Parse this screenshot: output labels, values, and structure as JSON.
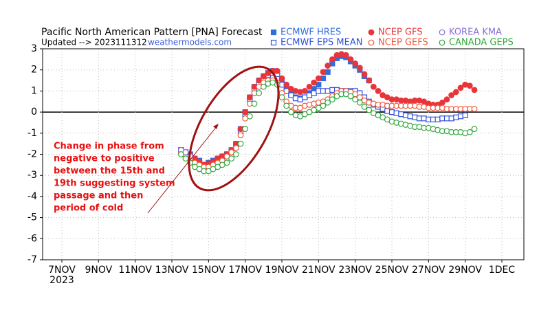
{
  "chart_data": {
    "type": "scatter",
    "title": "Pacific North American Pattern [PNA] Forecast",
    "subtitle": "Updated --> 2023111312",
    "source": "weathermodels.com",
    "x_year_label": "2023",
    "annotation": [
      "Change in phase from",
      "negative to positive",
      "between the 15th and",
      "19th suggesting system",
      "passage and then",
      "period of cold"
    ],
    "xlim": [
      5.95,
      32.2
    ],
    "ylim": [
      -7,
      3
    ],
    "xticks": [
      {
        "value": 7,
        "label": "7NOV"
      },
      {
        "value": 9,
        "label": "9NOV"
      },
      {
        "value": 11,
        "label": "11NOV"
      },
      {
        "value": 13,
        "label": "13NOV"
      },
      {
        "value": 15,
        "label": "15NOV"
      },
      {
        "value": 17,
        "label": "17NOV"
      },
      {
        "value": 19,
        "label": "19NOV"
      },
      {
        "value": 21,
        "label": "21NOV"
      },
      {
        "value": 23,
        "label": "23NOV"
      },
      {
        "value": 25,
        "label": "25NOV"
      },
      {
        "value": 27,
        "label": "27NOV"
      },
      {
        "value": 29,
        "label": "29NOV"
      },
      {
        "value": 31,
        "label": "1DEC"
      }
    ],
    "yticks": [
      -7,
      -6,
      -5,
      -4,
      -3,
      -2,
      -1,
      0,
      1,
      2,
      3
    ],
    "grid": true,
    "x": [
      13.5,
      13.75,
      14,
      14.25,
      14.5,
      14.75,
      15,
      15.25,
      15.5,
      15.75,
      16,
      16.25,
      16.5,
      16.75,
      17,
      17.25,
      17.5,
      17.75,
      18,
      18.25,
      18.5,
      18.75,
      19,
      19.25,
      19.5,
      19.75,
      20,
      20.25,
      20.5,
      20.75,
      21,
      21.25,
      21.5,
      21.75,
      22,
      22.25,
      22.5,
      22.75,
      23,
      23.25,
      23.5,
      23.75,
      24,
      24.25,
      24.5,
      24.75,
      25,
      25.25,
      25.5,
      25.75,
      26,
      26.25,
      26.5,
      26.75,
      27,
      27.25,
      27.5,
      27.75,
      28,
      28.25,
      28.5,
      28.75,
      29,
      29.25,
      29.5
    ],
    "series": [
      {
        "name": "ECMWF HRES",
        "color": "#2f6fdc",
        "marker": "square",
        "filled": true,
        "values": [
          -1.8,
          -1.9,
          -2.0,
          -2.2,
          -2.3,
          -2.5,
          -2.4,
          -2.3,
          -2.2,
          -2.1,
          -2.0,
          -1.8,
          -1.5,
          -0.8,
          0,
          0.7,
          1.2,
          1.5,
          1.7,
          1.85,
          1.95,
          1.9,
          1.5,
          1.1,
          0.85,
          0.7,
          0.65,
          0.7,
          0.9,
          1.1,
          1.3,
          1.6,
          1.9,
          2.3,
          2.55,
          2.65,
          2.6,
          2.4,
          2.2,
          2.0,
          1.7,
          1.5,
          null,
          null,
          null,
          null,
          null,
          null,
          null,
          null,
          null,
          null,
          null,
          null,
          null,
          null,
          null,
          null,
          null,
          null,
          null,
          null,
          null,
          null,
          null
        ]
      },
      {
        "name": "ECMWF EPS MEAN",
        "color": "#2f4fdc",
        "marker": "square",
        "filled": false,
        "values": [
          -1.8,
          -2.0,
          -2.1,
          -2.3,
          -2.4,
          -2.6,
          -2.5,
          -2.4,
          -2.3,
          -2.2,
          -2.0,
          -1.9,
          -1.6,
          -0.9,
          -0.1,
          0.6,
          1.1,
          1.4,
          1.6,
          1.75,
          1.85,
          1.8,
          1.3,
          1.0,
          0.8,
          0.65,
          0.6,
          0.7,
          0.8,
          0.9,
          1.0,
          1.0,
          1.0,
          1.05,
          1.05,
          1.0,
          1.0,
          1.0,
          1.0,
          0.9,
          0.7,
          0.5,
          0.35,
          0.25,
          0.15,
          0.05,
          0,
          -0.05,
          -0.1,
          -0.15,
          -0.2,
          -0.25,
          -0.3,
          -0.3,
          -0.35,
          -0.35,
          -0.35,
          -0.3,
          -0.3,
          -0.3,
          -0.25,
          -0.2,
          -0.15,
          null,
          null
        ]
      },
      {
        "name": "NCEP GFS",
        "color": "#e8353a",
        "marker": "circle",
        "filled": true,
        "values": [
          -1.8,
          -1.95,
          -2.05,
          -2.2,
          -2.35,
          -2.5,
          -2.45,
          -2.35,
          -2.2,
          -2.1,
          -2.0,
          -1.8,
          -1.5,
          -0.8,
          0,
          0.7,
          1.2,
          1.5,
          1.7,
          1.85,
          1.95,
          1.95,
          1.6,
          1.3,
          1.1,
          1.0,
          0.95,
          1.0,
          1.2,
          1.4,
          1.6,
          1.9,
          2.2,
          2.5,
          2.7,
          2.75,
          2.7,
          2.5,
          2.3,
          2.1,
          1.8,
          1.5,
          1.2,
          1.0,
          0.8,
          0.7,
          0.6,
          0.6,
          0.55,
          0.55,
          0.5,
          0.55,
          0.55,
          0.5,
          0.4,
          0.35,
          0.35,
          0.45,
          0.6,
          0.8,
          0.95,
          1.15,
          1.3,
          1.25,
          1.05
        ]
      },
      {
        "name": "NCEP GEFS",
        "color": "#f0553a",
        "marker": "circle",
        "filled": false,
        "values": [
          -1.9,
          -2.1,
          -2.2,
          -2.4,
          -2.5,
          -2.6,
          -2.6,
          -2.5,
          -2.4,
          -2.3,
          -2.1,
          -1.9,
          -1.7,
          -1.1,
          -0.3,
          0.4,
          0.9,
          1.2,
          1.4,
          1.5,
          1.5,
          1.4,
          0.9,
          0.5,
          0.3,
          0.2,
          0.2,
          0.3,
          0.35,
          0.4,
          0.45,
          0.5,
          0.6,
          0.75,
          0.9,
          1.0,
          1.0,
          0.95,
          0.85,
          0.7,
          0.55,
          0.45,
          0.4,
          0.35,
          0.35,
          0.3,
          0.3,
          0.3,
          0.3,
          0.3,
          0.3,
          0.3,
          0.25,
          0.25,
          0.2,
          0.2,
          0.2,
          0.2,
          0.15,
          0.15,
          0.15,
          0.15,
          0.15,
          0.15,
          0.15
        ]
      },
      {
        "name": "KOREA KMA",
        "color": "#8a6fd8",
        "marker": "circle",
        "filled": false,
        "values": [
          -1.8,
          -1.9,
          -2.1,
          null,
          null,
          null,
          null,
          null,
          null,
          null,
          null,
          null,
          null,
          null,
          null,
          null,
          null,
          null,
          null,
          null,
          null,
          null,
          null,
          null,
          null,
          null,
          null,
          null,
          null,
          null,
          null,
          null,
          null,
          null,
          null,
          null,
          null,
          null,
          null,
          null,
          null,
          null,
          null,
          null,
          null,
          null,
          null,
          null,
          null,
          null,
          null,
          null,
          null,
          null,
          null,
          null,
          null,
          null,
          null,
          null,
          null,
          null,
          null,
          null,
          null
        ]
      },
      {
        "name": "CANADA GEPS",
        "color": "#2fa83a",
        "marker": "circle",
        "filled": false,
        "values": [
          -2.0,
          -2.2,
          -2.4,
          -2.6,
          -2.7,
          -2.8,
          -2.8,
          -2.7,
          -2.6,
          -2.5,
          -2.4,
          -2.2,
          -2.0,
          -1.5,
          -0.8,
          -0.2,
          0.4,
          0.9,
          1.2,
          1.35,
          1.4,
          1.3,
          0.7,
          0.3,
          0,
          -0.15,
          -0.2,
          -0.1,
          0,
          0.1,
          0.2,
          0.3,
          0.45,
          0.6,
          0.75,
          0.85,
          0.85,
          0.75,
          0.6,
          0.45,
          0.25,
          0.1,
          -0.05,
          -0.15,
          -0.25,
          -0.35,
          -0.45,
          -0.5,
          -0.55,
          -0.6,
          -0.65,
          -0.7,
          -0.7,
          -0.75,
          -0.75,
          -0.8,
          -0.85,
          -0.9,
          -0.9,
          -0.95,
          -0.95,
          -0.95,
          -1.0,
          -0.95,
          -0.8
        ]
      }
    ]
  }
}
